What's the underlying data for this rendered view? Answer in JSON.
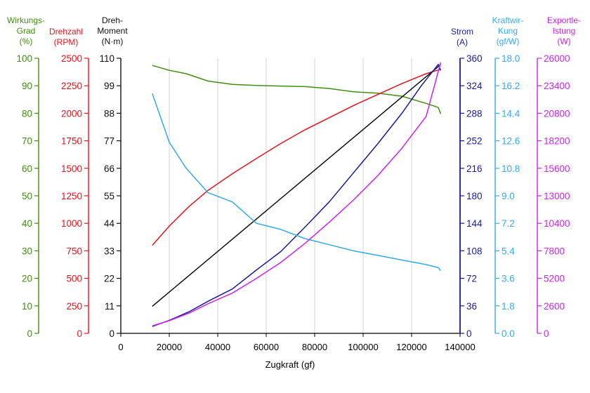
{
  "chart_data": {
    "type": "line",
    "xlabel": "Zugkraft (gf)",
    "xlim": [
      0,
      140000
    ],
    "x_ticks": [
      "0",
      "20000",
      "40000",
      "60000",
      "80000",
      "100000",
      "120000",
      "140000"
    ],
    "grid": "vertical",
    "axes": [
      {
        "id": "eff",
        "label": [
          "Wirkungs-",
          "Grad",
          "(%)"
        ],
        "color": "#3f8f0f",
        "side": "left",
        "range": [
          0,
          100
        ],
        "ticks": [
          "0",
          "10",
          "20",
          "30",
          "40",
          "50",
          "60",
          "70",
          "80",
          "90",
          "100"
        ]
      },
      {
        "id": "rpm",
        "label": [
          "Drehzahl",
          "(RPM)"
        ],
        "color": "#e8141d",
        "side": "left",
        "range": [
          0,
          2500
        ],
        "ticks": [
          "0",
          "250",
          "500",
          "750",
          "1000",
          "1250",
          "1500",
          "1750",
          "2000",
          "2250",
          "2500"
        ]
      },
      {
        "id": "torque",
        "label": [
          "Dreh-",
          "Moment",
          "(N·m)"
        ],
        "color": "#111111",
        "side": "left",
        "range": [
          0,
          110
        ],
        "ticks": [
          "0",
          "11",
          "22",
          "33",
          "44",
          "55",
          "66",
          "77",
          "88",
          "99",
          "110"
        ]
      },
      {
        "id": "curr",
        "label": [
          "Strom",
          "(A)"
        ],
        "color": "#1a1aa0",
        "side": "right",
        "range": [
          0,
          360
        ],
        "ticks": [
          "0",
          "36",
          "72",
          "108",
          "144",
          "180",
          "216",
          "252",
          "288",
          "324",
          "360"
        ]
      },
      {
        "id": "keff",
        "label": [
          "Kraftwir-",
          "Kung",
          "(gf/W)"
        ],
        "color": "#33aaee",
        "side": "right",
        "range": [
          0,
          18
        ],
        "ticks": [
          "0.0",
          "1.8",
          "3.6",
          "5.4",
          "7.2",
          "9.0",
          "10.8",
          "12.6",
          "14.4",
          "16.2",
          "18.0"
        ]
      },
      {
        "id": "power",
        "label": [
          "Exportle-",
          "Istung",
          "(W)"
        ],
        "color": "#cc22ee",
        "side": "right",
        "range": [
          0,
          26000
        ],
        "ticks": [
          "0",
          "2600",
          "5200",
          "7800",
          "10400",
          "13000",
          "15600",
          "18200",
          "20800",
          "23400",
          "26000"
        ]
      }
    ],
    "series": [
      {
        "axis": "eff",
        "color": "#3f8f0f",
        "x": [
          13000,
          20000,
          27000,
          36000,
          46000,
          56000,
          66000,
          76000,
          86000,
          96000,
          106000,
          116000,
          126000,
          131000,
          132000
        ],
        "y": [
          97.4,
          95.6,
          94.4,
          91.7,
          90.5,
          90.1,
          89.9,
          89.7,
          89.0,
          87.8,
          87.3,
          86.2,
          83.6,
          82.1,
          79.8
        ]
      },
      {
        "axis": "rpm",
        "color": "#e8141d",
        "x": [
          13000,
          20000,
          28000,
          36000,
          46000,
          56000,
          66000,
          76000,
          86000,
          96000,
          106000,
          116000,
          126000,
          132000
        ],
        "y": [
          800,
          975,
          1150,
          1300,
          1450,
          1590,
          1725,
          1850,
          1960,
          2070,
          2170,
          2270,
          2360,
          2400
        ]
      },
      {
        "axis": "torque",
        "color": "#111111",
        "x": [
          13000,
          132000
        ],
        "y": [
          10.8,
          107.5
        ]
      },
      {
        "axis": "curr",
        "color": "#1a1aa0",
        "x": [
          13000,
          20000,
          28000,
          36000,
          46000,
          56000,
          66000,
          76000,
          86000,
          96000,
          106000,
          116000,
          124000,
          128000,
          131000,
          132000
        ],
        "y": [
          9,
          17,
          28,
          42,
          58,
          83,
          107,
          139,
          172,
          210,
          248,
          288,
          324,
          340,
          352,
          344
        ]
      },
      {
        "axis": "keff",
        "color": "#33aaee",
        "x": [
          13000,
          20000,
          27000,
          36000,
          46000,
          56000,
          66000,
          76000,
          86000,
          96000,
          106000,
          116000,
          126000,
          131000,
          132000
        ],
        "y": [
          15.7,
          12.5,
          10.8,
          9.2,
          8.6,
          7.2,
          6.8,
          6.2,
          5.8,
          5.4,
          5.1,
          4.8,
          4.5,
          4.3,
          4.1
        ]
      },
      {
        "axis": "power",
        "color": "#cc22ee",
        "x": [
          13000,
          20000,
          28000,
          36000,
          46000,
          56000,
          66000,
          76000,
          86000,
          96000,
          106000,
          116000,
          126000,
          132000
        ],
        "y": [
          700,
          1200,
          1900,
          2800,
          3800,
          5200,
          6700,
          8500,
          10500,
          12600,
          14900,
          17500,
          20500,
          25600
        ]
      }
    ]
  }
}
